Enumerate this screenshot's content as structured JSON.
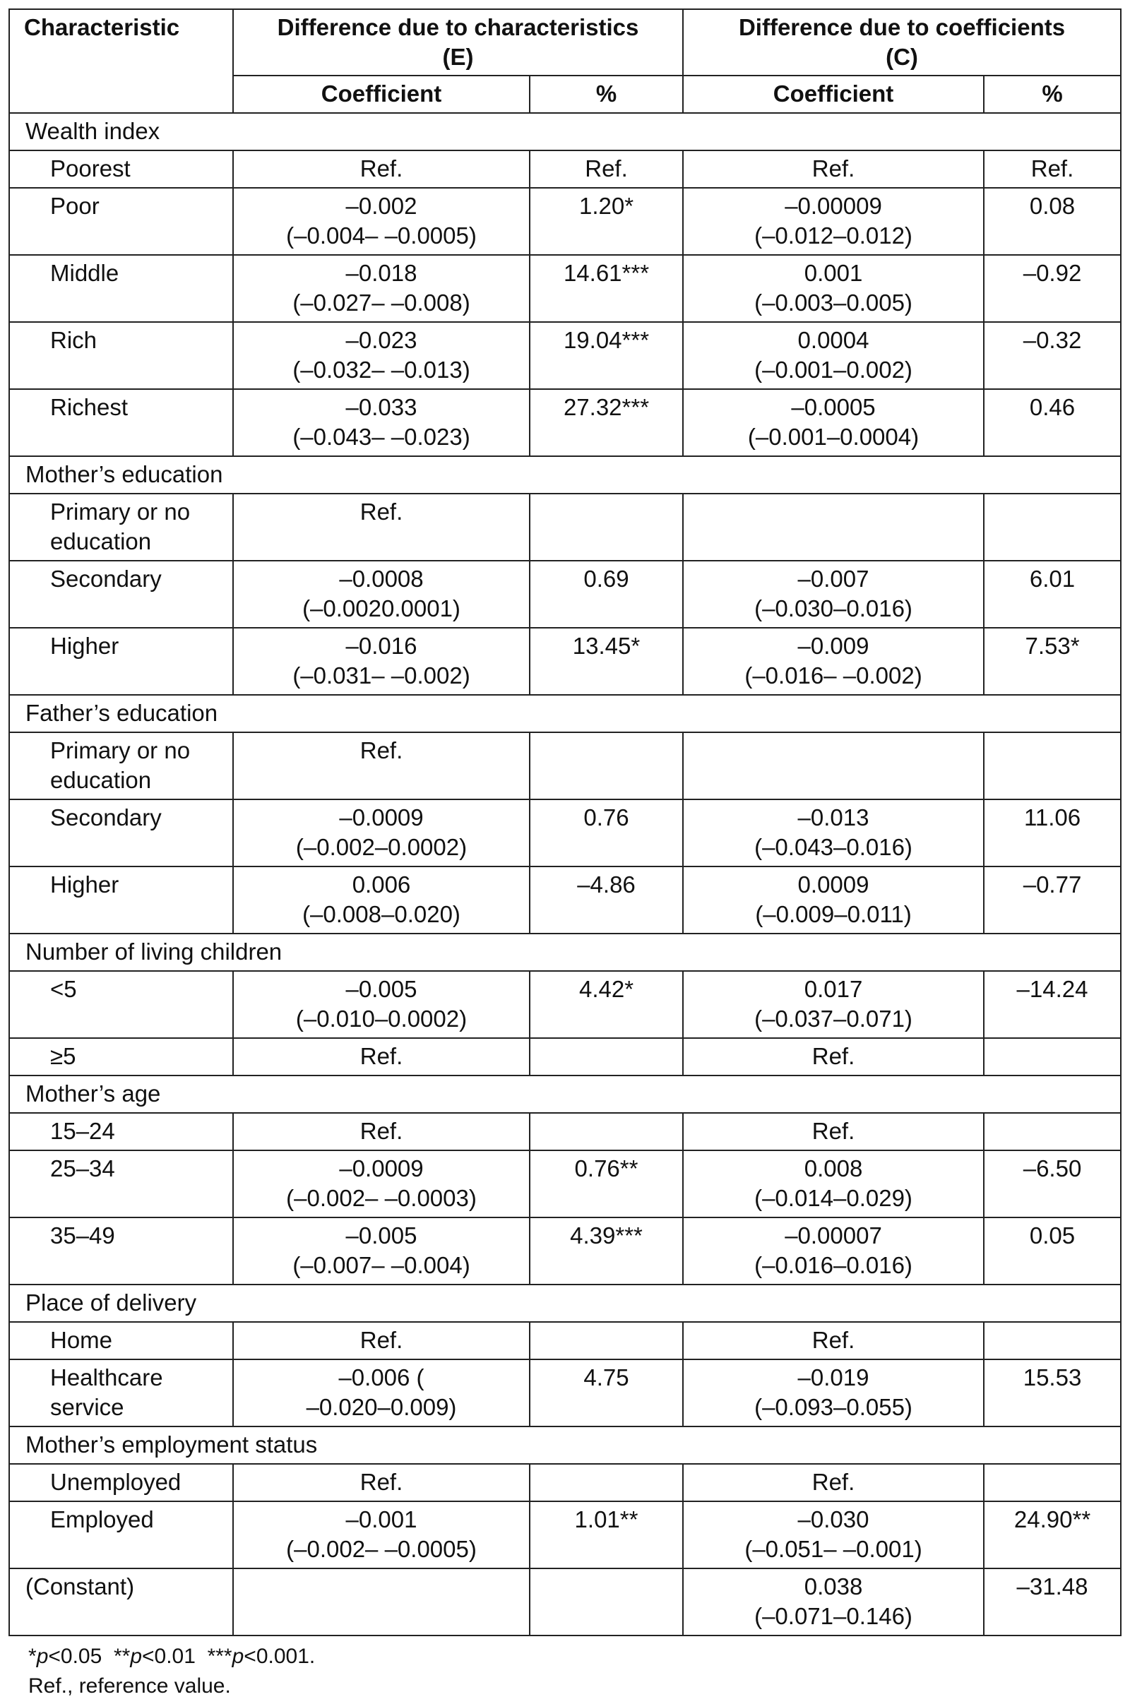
{
  "header": {
    "characteristic": "Characteristic",
    "group_e": "Difference due to characteristics\n(E)",
    "group_c": "Difference due to coefficients\n(C)",
    "coef": "Coefficient",
    "pct": "%"
  },
  "rows": [
    {
      "type": "section",
      "label": "Wealth index"
    },
    {
      "type": "data",
      "label": "Poorest",
      "e_coef": "Ref.",
      "e_pct": "Ref.",
      "c_coef": "Ref.",
      "c_pct": "Ref."
    },
    {
      "type": "data",
      "label": "Poor",
      "e_coef": "–0.002\n(–0.004– –0.0005)",
      "e_pct": "1.20*",
      "c_coef": "–0.00009\n(–0.012–0.012)",
      "c_pct": "0.08"
    },
    {
      "type": "data",
      "label": "Middle",
      "e_coef": "–0.018\n(–0.027– –0.008)",
      "e_pct": "14.61***",
      "c_coef": "0.001\n(–0.003–0.005)",
      "c_pct": "–0.92"
    },
    {
      "type": "data",
      "label": "Rich",
      "e_coef": "–0.023\n(–0.032– –0.013)",
      "e_pct": "19.04***",
      "c_coef": "0.0004\n(–0.001–0.002)",
      "c_pct": "–0.32"
    },
    {
      "type": "data",
      "label": "Richest",
      "e_coef": "–0.033\n(–0.043– –0.023)",
      "e_pct": "27.32***",
      "c_coef": "–0.0005\n(–0.001–0.0004)",
      "c_pct": "0.46"
    },
    {
      "type": "section",
      "label": "Mother’s education"
    },
    {
      "type": "data",
      "label": "Primary or no\neducation",
      "e_coef": "Ref.",
      "e_pct": "",
      "c_coef": "",
      "c_pct": ""
    },
    {
      "type": "data",
      "label": "Secondary",
      "e_coef": "–0.0008\n(–0.0020.0001)",
      "e_pct": "0.69",
      "c_coef": "–0.007\n(–0.030–0.016)",
      "c_pct": "6.01"
    },
    {
      "type": "data",
      "label": "Higher",
      "e_coef": "–0.016\n(–0.031– –0.002)",
      "e_pct": "13.45*",
      "c_coef": "–0.009\n(–0.016– –0.002)",
      "c_pct": "7.53*"
    },
    {
      "type": "section",
      "label": "Father’s education"
    },
    {
      "type": "data",
      "label": "Primary or no\neducation",
      "e_coef": "Ref.",
      "e_pct": "",
      "c_coef": "",
      "c_pct": ""
    },
    {
      "type": "data",
      "label": "Secondary",
      "e_coef": "–0.0009\n(–0.002–0.0002)",
      "e_pct": "0.76",
      "c_coef": "–0.013\n(–0.043–0.016)",
      "c_pct": "11.06"
    },
    {
      "type": "data",
      "label": "Higher",
      "e_coef": "0.006\n(–0.008–0.020)",
      "e_pct": "–4.86",
      "c_coef": "0.0009\n(–0.009–0.011)",
      "c_pct": "–0.77"
    },
    {
      "type": "section",
      "label": "Number of living children"
    },
    {
      "type": "data",
      "label": "<5",
      "e_coef": "–0.005\n(–0.010–0.0002)",
      "e_pct": "4.42*",
      "c_coef": "0.017\n(–0.037–0.071)",
      "c_pct": "–14.24"
    },
    {
      "type": "data",
      "label": "≥5",
      "e_coef": "Ref.",
      "e_pct": "",
      "c_coef": "Ref.",
      "c_pct": ""
    },
    {
      "type": "section",
      "label": "Mother’s age"
    },
    {
      "type": "data",
      "label": "15–24",
      "e_coef": "Ref.",
      "e_pct": "",
      "c_coef": "Ref.",
      "c_pct": ""
    },
    {
      "type": "data",
      "label": "25–34",
      "e_coef": "–0.0009\n(–0.002– –0.0003)",
      "e_pct": "0.76**",
      "c_coef": "0.008\n(–0.014–0.029)",
      "c_pct": "–6.50"
    },
    {
      "type": "data",
      "label": "35–49",
      "e_coef": "–0.005\n(–0.007– –0.004)",
      "e_pct": "4.39***",
      "c_coef": "–0.00007\n(–0.016–0.016)",
      "c_pct": "0.05"
    },
    {
      "type": "section",
      "label": "Place of delivery"
    },
    {
      "type": "data",
      "label": "Home",
      "e_coef": "Ref.",
      "e_pct": "",
      "c_coef": "Ref.",
      "c_pct": ""
    },
    {
      "type": "data",
      "label": "Healthcare\nservice",
      "e_coef": "–0.006 (\n–0.020–0.009)",
      "e_pct": "4.75",
      "c_coef": "–0.019\n(–0.093–0.055)",
      "c_pct": "15.53"
    },
    {
      "type": "section",
      "label": "Mother’s employment status"
    },
    {
      "type": "data",
      "label": "Unemployed",
      "e_coef": "Ref.",
      "e_pct": "",
      "c_coef": "Ref.",
      "c_pct": ""
    },
    {
      "type": "data",
      "label": "Employed",
      "e_coef": "–0.001\n(–0.002– –0.0005)",
      "e_pct": "1.01**",
      "c_coef": "–0.030\n(–0.051– –0.001)",
      "c_pct": "24.90**"
    },
    {
      "type": "constant",
      "label": "(Constant)",
      "e_coef": "",
      "e_pct": "",
      "c_coef": "0.038\n(–0.071–0.146)",
      "c_pct": "–31.48"
    }
  ],
  "footnotes": {
    "significance": "*p<0.05  **p<0.01  ***p<0.001.",
    "ref": "Ref., reference value."
  }
}
